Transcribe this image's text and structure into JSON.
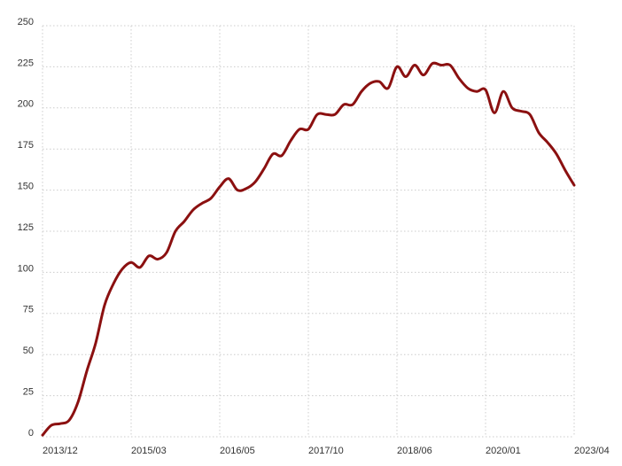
{
  "chart_data": {
    "type": "line",
    "categories": [
      "2013/12",
      null,
      null,
      null,
      null,
      null,
      null,
      null,
      null,
      null,
      "2015/03",
      null,
      null,
      null,
      null,
      null,
      null,
      null,
      null,
      null,
      "2016/05",
      null,
      null,
      null,
      null,
      null,
      null,
      null,
      null,
      null,
      "2017/10",
      null,
      null,
      null,
      null,
      null,
      null,
      null,
      null,
      null,
      "2018/06",
      null,
      null,
      null,
      null,
      null,
      null,
      null,
      null,
      null,
      "2020/01",
      null,
      null,
      null,
      null,
      null,
      null,
      null,
      null,
      null,
      "2023/04"
    ],
    "series": [
      {
        "color": "#8b1010",
        "values": [
          1,
          7,
          8,
          10,
          21,
          40,
          57,
          80,
          93,
          102,
          106,
          103,
          110,
          108,
          112,
          125,
          131,
          138,
          142,
          145,
          152,
          157,
          150,
          151,
          155,
          163,
          172,
          171,
          180,
          187,
          187,
          196,
          196,
          196,
          202,
          202,
          210,
          215,
          216,
          212,
          225,
          219,
          226,
          220,
          227,
          226,
          226,
          218,
          212,
          210,
          211,
          197,
          210,
          200,
          198,
          196,
          185,
          179,
          172,
          162,
          153
        ]
      }
    ],
    "ylim": [
      0,
      250
    ],
    "yticks": [
      0,
      25,
      50,
      75,
      100,
      125,
      150,
      175,
      200,
      225,
      250
    ],
    "grid": true
  }
}
